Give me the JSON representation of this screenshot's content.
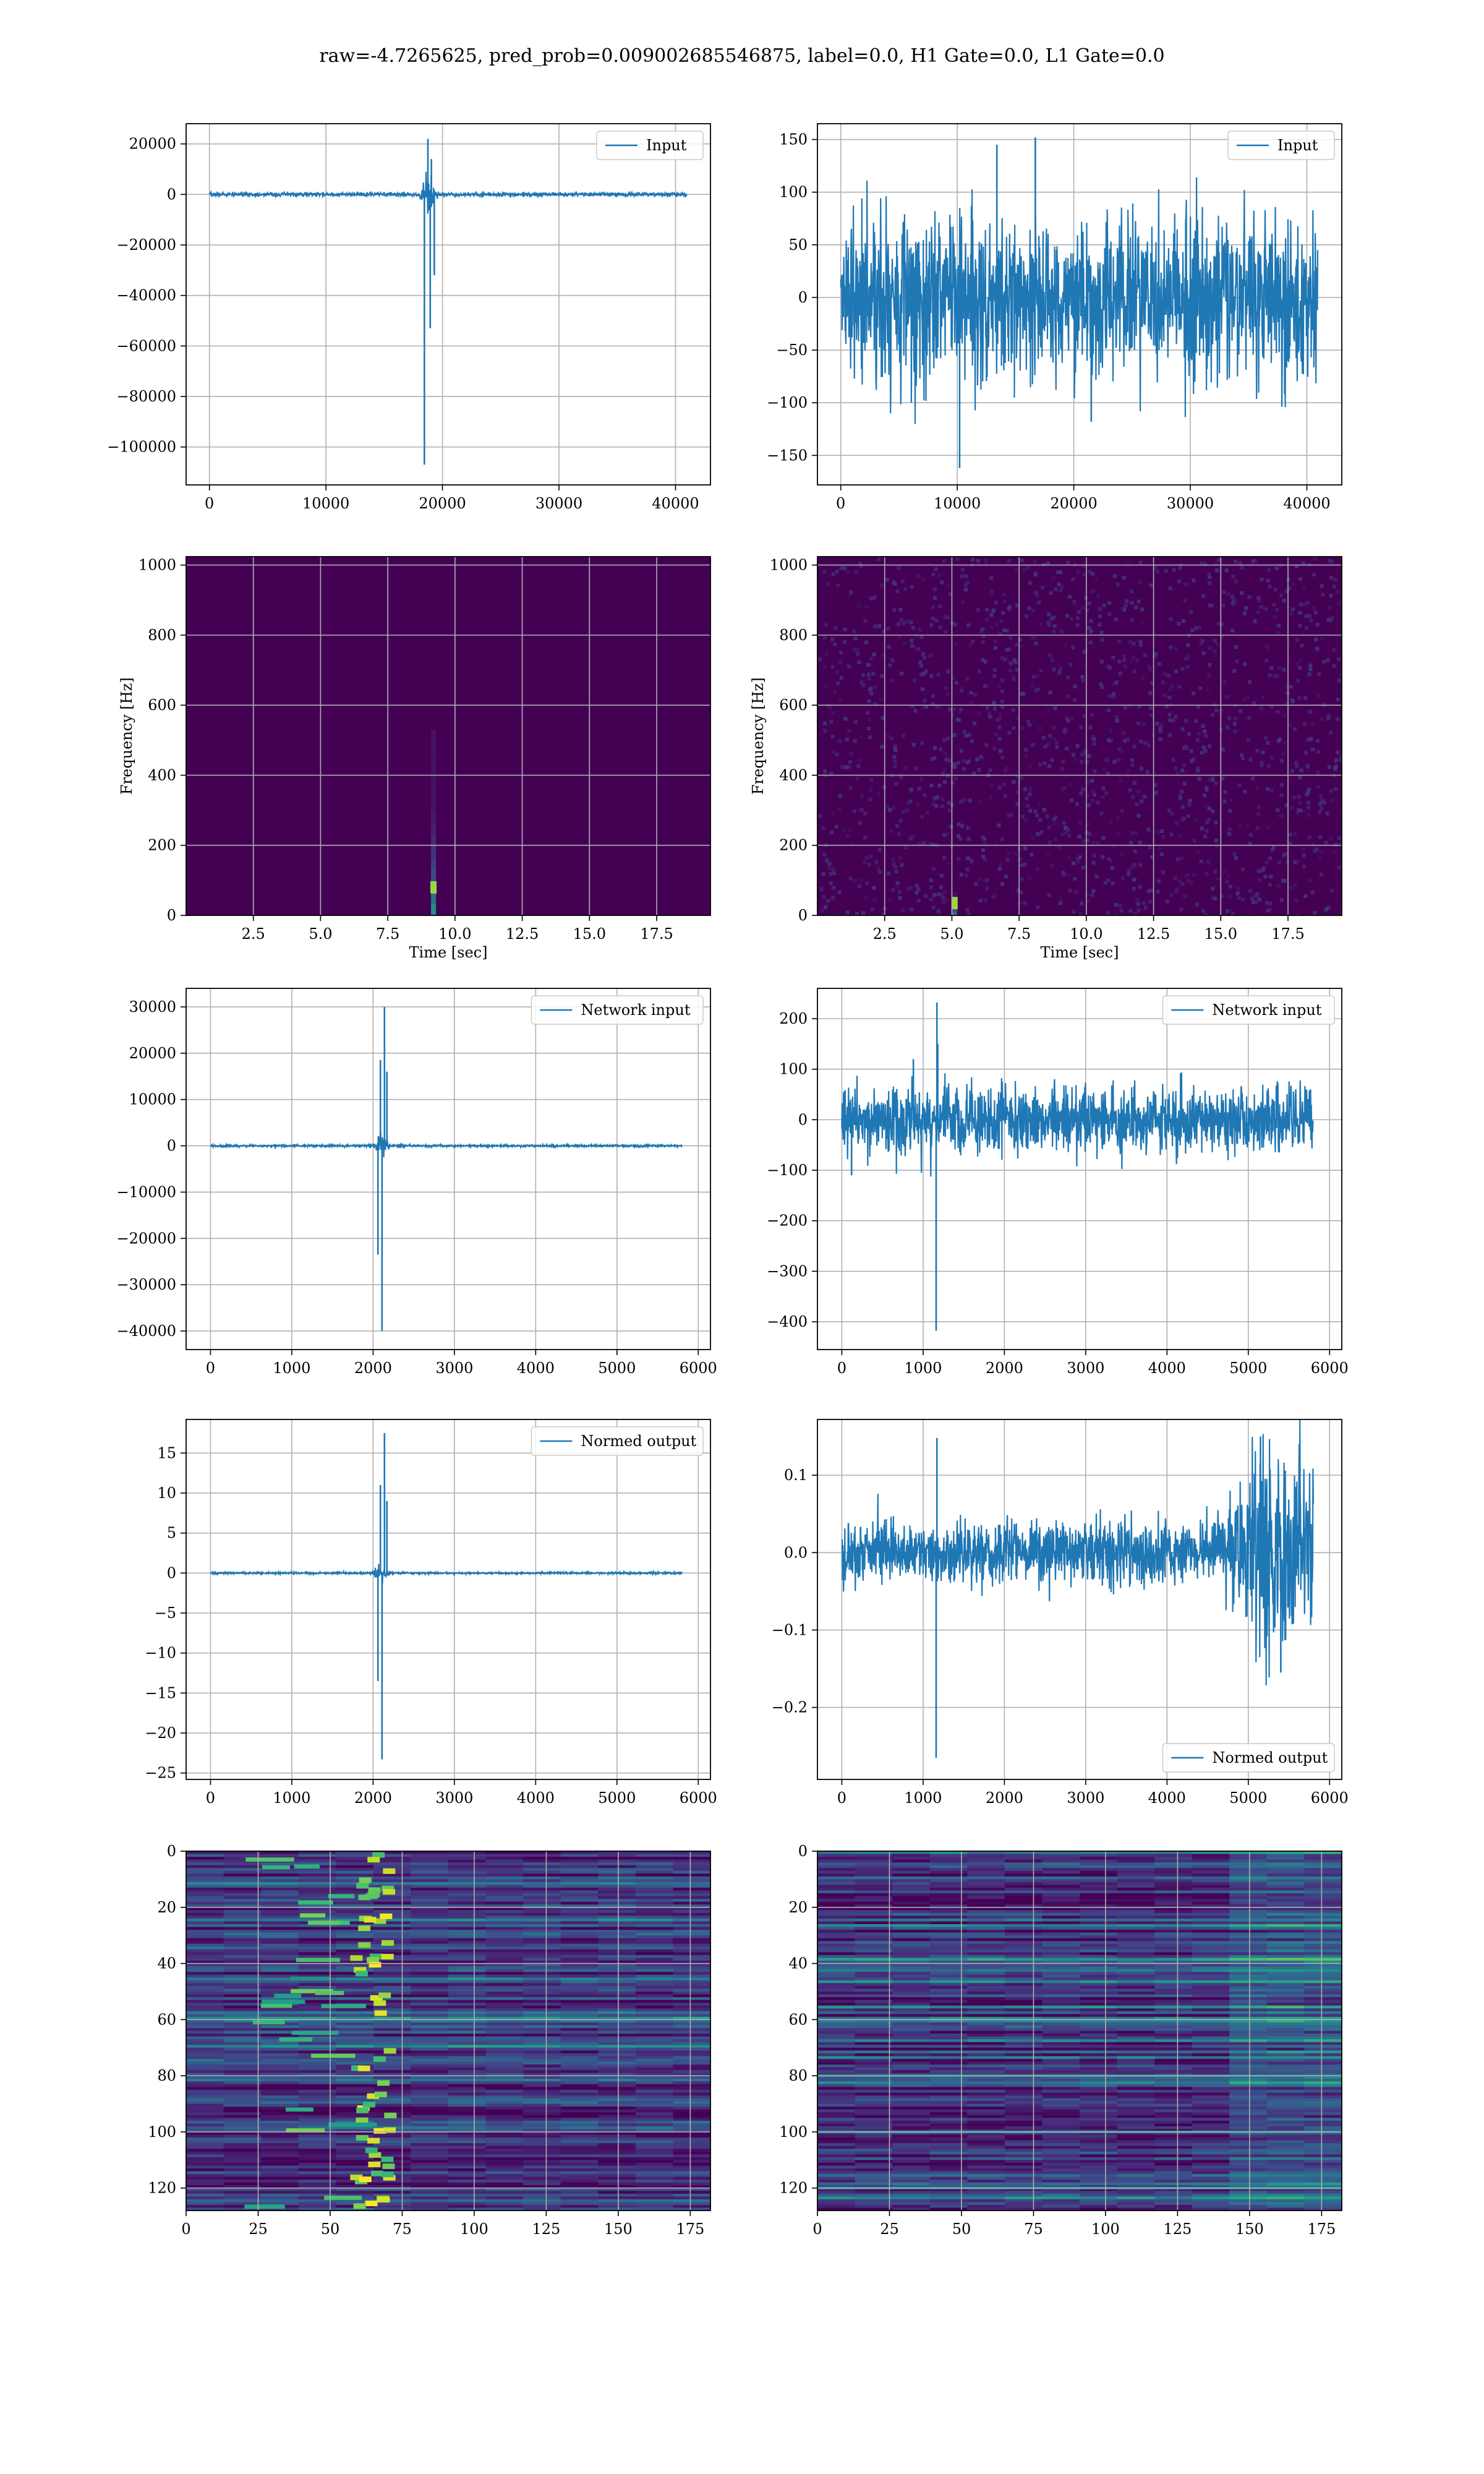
{
  "title": "raw=-4.7265625, pred_prob=0.009002685546875, label=0.0, H1 Gate=0.0, L1 Gate=0.0",
  "colors": {
    "line": "#1f77b4",
    "grid": "#b0b0b0",
    "viridis_low": "#440154",
    "viridis_high": "#fde725"
  },
  "chart_data": [
    {
      "type": "line",
      "id": "input-h1",
      "legend": "Input",
      "legend_loc": "upper right",
      "xlim": [
        -2000,
        43000
      ],
      "ylim": [
        -115000,
        28000
      ],
      "xticks": [
        0,
        10000,
        20000,
        30000,
        40000
      ],
      "xtick_labels": [
        "0",
        "10000",
        "20000",
        "30000",
        "40000"
      ],
      "yticks": [
        -100000,
        -80000,
        -60000,
        -40000,
        -20000,
        0,
        20000
      ],
      "ytick_labels": [
        "−100000",
        "−80000",
        "−60000",
        "−40000",
        "−20000",
        "0",
        "20000"
      ],
      "xlabel": "",
      "ylabel": "",
      "grid": true,
      "signal": {
        "n": 40960,
        "noise_amp": 400,
        "burst_center": 18800,
        "burst_halfwidth": 800,
        "spike_x": [
          18450,
          18750,
          18950,
          19050,
          19300
        ],
        "spike_y": [
          -107000,
          22000,
          -53000,
          14000,
          -32000
        ]
      }
    },
    {
      "type": "line",
      "id": "input-l1",
      "legend": "Input",
      "legend_loc": "upper right",
      "xlim": [
        -2000,
        43000
      ],
      "ylim": [
        -178,
        165
      ],
      "xticks": [
        0,
        10000,
        20000,
        30000,
        40000
      ],
      "xtick_labels": [
        "0",
        "10000",
        "20000",
        "30000",
        "40000"
      ],
      "yticks": [
        -150,
        -100,
        -50,
        0,
        50,
        100,
        150
      ],
      "ytick_labels": [
        "−150",
        "−100",
        "−50",
        "0",
        "50",
        "100",
        "150"
      ],
      "xlabel": "",
      "ylabel": "",
      "grid": true,
      "signal": {
        "n": 40960,
        "noise_amp": 42,
        "burst_center": 0,
        "burst_halfwidth": 0,
        "spike_x": [
          10200,
          16700,
          13400,
          21500
        ],
        "spike_y": [
          -162,
          152,
          145,
          -118
        ]
      }
    },
    {
      "type": "heatmap",
      "id": "spec-h1",
      "xlabel": "Time [sec]",
      "ylabel": "Frequency [Hz]",
      "xlim": [
        0,
        19.5
      ],
      "ylim": [
        0,
        1024
      ],
      "xticks": [
        2.5,
        5.0,
        7.5,
        10.0,
        12.5,
        15.0,
        17.5
      ],
      "xtick_labels": [
        "2.5",
        "5.0",
        "7.5",
        "10.0",
        "12.5",
        "15.0",
        "17.5"
      ],
      "yticks": [
        0,
        200,
        400,
        600,
        800,
        1000
      ],
      "ytick_labels": [
        "0",
        "200",
        "400",
        "600",
        "800",
        "1000"
      ],
      "grid": true,
      "colormap": "viridis",
      "hotspot": {
        "t": 9.2,
        "f": 80,
        "f_extent": 450
      }
    },
    {
      "type": "heatmap",
      "id": "spec-l1",
      "xlabel": "Time [sec]",
      "ylabel": "Frequency [Hz]",
      "xlim": [
        0,
        19.5
      ],
      "ylim": [
        0,
        1024
      ],
      "xticks": [
        2.5,
        5.0,
        7.5,
        10.0,
        12.5,
        15.0,
        17.5
      ],
      "xtick_labels": [
        "2.5",
        "5.0",
        "7.5",
        "10.0",
        "12.5",
        "15.0",
        "17.5"
      ],
      "yticks": [
        0,
        200,
        400,
        600,
        800,
        1000
      ],
      "ytick_labels": [
        "0",
        "200",
        "400",
        "600",
        "800",
        "1000"
      ],
      "grid": true,
      "colormap": "viridis",
      "hotspot": {
        "t": 5.1,
        "f": 35,
        "f_extent": 30
      }
    },
    {
      "type": "line",
      "id": "network-input-h1",
      "legend": "Network input",
      "legend_loc": "upper right",
      "xlim": [
        -300,
        6150
      ],
      "ylim": [
        -44000,
        34000
      ],
      "xticks": [
        0,
        1000,
        2000,
        3000,
        4000,
        5000,
        6000
      ],
      "xtick_labels": [
        "0",
        "1000",
        "2000",
        "3000",
        "4000",
        "5000",
        "6000"
      ],
      "yticks": [
        -40000,
        -30000,
        -20000,
        -10000,
        0,
        10000,
        20000,
        30000
      ],
      "ytick_labels": [
        "−40000",
        "−30000",
        "−20000",
        "−10000",
        "0",
        "10000",
        "20000",
        "30000"
      ],
      "xlabel": "",
      "ylabel": "",
      "grid": true,
      "signal": {
        "n": 5800,
        "noise_amp": 120,
        "burst_center": 2100,
        "burst_halfwidth": 110,
        "spike_x": [
          2060,
          2090,
          2110,
          2140,
          2170
        ],
        "spike_y": [
          -23500,
          18500,
          -40000,
          30000,
          16000
        ]
      }
    },
    {
      "type": "line",
      "id": "network-input-l1",
      "legend": "Network input",
      "legend_loc": "upper right",
      "xlim": [
        -300,
        6150
      ],
      "ylim": [
        -455,
        260
      ],
      "xticks": [
        0,
        1000,
        2000,
        3000,
        4000,
        5000,
        6000
      ],
      "xtick_labels": [
        "0",
        "1000",
        "2000",
        "3000",
        "4000",
        "5000",
        "6000"
      ],
      "yticks": [
        -400,
        -300,
        -200,
        -100,
        0,
        100,
        200
      ],
      "ytick_labels": [
        "−400",
        "−300",
        "−200",
        "−100",
        "0",
        "100",
        "200"
      ],
      "xlabel": "",
      "ylabel": "",
      "grid": true,
      "signal": {
        "n": 5800,
        "noise_amp": 36,
        "burst_center": 0,
        "burst_halfwidth": 0,
        "spike_x": [
          1160,
          1170,
          1180,
          120,
          880
        ],
        "spike_y": [
          -418,
          232,
          150,
          -110,
          120
        ]
      }
    },
    {
      "type": "line",
      "id": "normed-output-h1",
      "legend": "Normed output",
      "legend_loc": "upper right",
      "xlim": [
        -300,
        6150
      ],
      "ylim": [
        -25.8,
        19.2
      ],
      "xticks": [
        0,
        1000,
        2000,
        3000,
        4000,
        5000,
        6000
      ],
      "xtick_labels": [
        "0",
        "1000",
        "2000",
        "3000",
        "4000",
        "5000",
        "6000"
      ],
      "yticks": [
        -25,
        -20,
        -15,
        -10,
        -5,
        0,
        5,
        10,
        15
      ],
      "ytick_labels": [
        "−25",
        "−20",
        "−15",
        "−10",
        "−5",
        "0",
        "5",
        "10",
        "15"
      ],
      "xlabel": "",
      "ylabel": "",
      "grid": true,
      "signal": {
        "n": 5800,
        "noise_amp": 0.06,
        "burst_center": 2100,
        "burst_halfwidth": 110,
        "spike_x": [
          2060,
          2090,
          2110,
          2140,
          2170
        ],
        "spike_y": [
          -13.5,
          11,
          -23.3,
          17.5,
          9
        ]
      }
    },
    {
      "type": "line",
      "id": "normed-output-l1",
      "legend": "Normed output",
      "legend_loc": "lower right",
      "xlim": [
        -300,
        6150
      ],
      "ylim": [
        -0.293,
        0.172
      ],
      "xticks": [
        0,
        1000,
        2000,
        3000,
        4000,
        5000,
        6000
      ],
      "xtick_labels": [
        "0",
        "1000",
        "2000",
        "3000",
        "4000",
        "5000",
        "6000"
      ],
      "yticks": [
        -0.2,
        -0.1,
        0.0,
        0.1
      ],
      "ytick_labels": [
        "−0.2",
        "−0.1",
        "0.0",
        "0.1"
      ],
      "xlabel": "",
      "ylabel": "",
      "grid": true,
      "signal": {
        "n": 5800,
        "noise_amp": 0.022,
        "burst_center": 0,
        "burst_halfwidth": 0,
        "growth_start": 4600,
        "growth_peak": 5250,
        "growth_amp": 0.06,
        "spike_x": [
          1160,
          1170,
          5150,
          5400
        ],
        "spike_y": [
          -0.265,
          0.148,
          0.15,
          -0.155
        ]
      }
    },
    {
      "type": "heatmap",
      "id": "features-h1",
      "xlabel": "",
      "ylabel": "",
      "xlim": [
        0,
        182
      ],
      "ylim": [
        128,
        0
      ],
      "xticks": [
        0,
        25,
        50,
        75,
        100,
        125,
        150,
        175
      ],
      "xtick_labels": [
        "0",
        "25",
        "50",
        "75",
        "100",
        "125",
        "150",
        "175"
      ],
      "yticks": [
        0,
        20,
        40,
        60,
        80,
        100,
        120
      ],
      "ytick_labels": [
        "0",
        "20",
        "40",
        "60",
        "80",
        "100",
        "120"
      ],
      "grid": true,
      "colormap": "viridis",
      "rows": 128,
      "cols": 182,
      "bright_band_x": 65
    },
    {
      "type": "heatmap",
      "id": "features-l1",
      "xlabel": "",
      "ylabel": "",
      "xlim": [
        0,
        182
      ],
      "ylim": [
        128,
        0
      ],
      "xticks": [
        0,
        25,
        50,
        75,
        100,
        125,
        150,
        175
      ],
      "xtick_labels": [
        "0",
        "25",
        "50",
        "75",
        "100",
        "125",
        "150",
        "175"
      ],
      "yticks": [
        0,
        20,
        40,
        60,
        80,
        100,
        120
      ],
      "ytick_labels": [
        "0",
        "20",
        "40",
        "60",
        "80",
        "100",
        "120"
      ],
      "grid": true,
      "colormap": "viridis",
      "rows": 128,
      "cols": 182,
      "bright_band_x": -1
    }
  ]
}
